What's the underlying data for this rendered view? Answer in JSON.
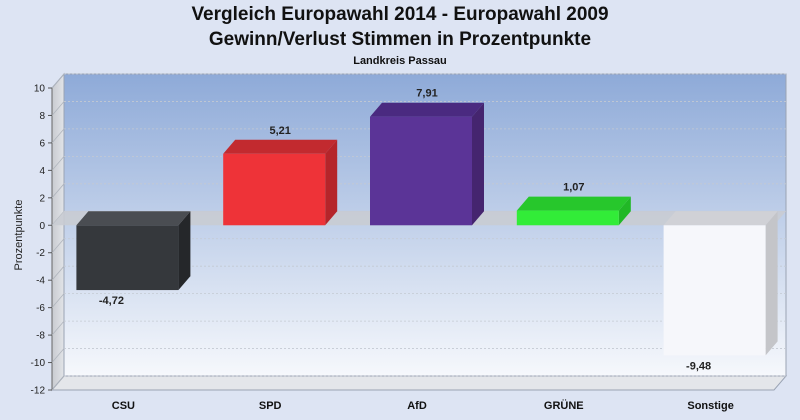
{
  "chart_data": {
    "type": "bar",
    "title": "Vergleich Europawahl 2014 - Europawahl 2009",
    "subtitle": "Gewinn/Verlust Stimmen in Prozentpunkte",
    "caption": "Landkreis Passau",
    "ylabel": "Prozentpunkte",
    "xlabel": "",
    "ylim": [
      -12,
      10
    ],
    "yticks": [
      10,
      8,
      6,
      4,
      2,
      0,
      -2,
      -4,
      -6,
      -8,
      -10,
      -12
    ],
    "grid": true,
    "categories": [
      "CSU",
      "SPD",
      "AfD",
      "GRÜNE",
      "Sonstige"
    ],
    "values": [
      -4.72,
      5.21,
      7.91,
      1.07,
      -9.48
    ],
    "value_labels": [
      "-4,72",
      "5,21",
      "7,91",
      "1,07",
      "-9,48"
    ],
    "colors": [
      "#35383c",
      "#ee3338",
      "#5b3497",
      "#32ec38",
      "#f6f7fb"
    ],
    "side_colors": [
      "#25272a",
      "#b5252a",
      "#45256f",
      "#21b826",
      "#c4c5c9"
    ],
    "top_colors": [
      "#4a4d52",
      "#c22a2f",
      "#4a2a80",
      "#27c72c",
      "#d0d1d6"
    ]
  }
}
